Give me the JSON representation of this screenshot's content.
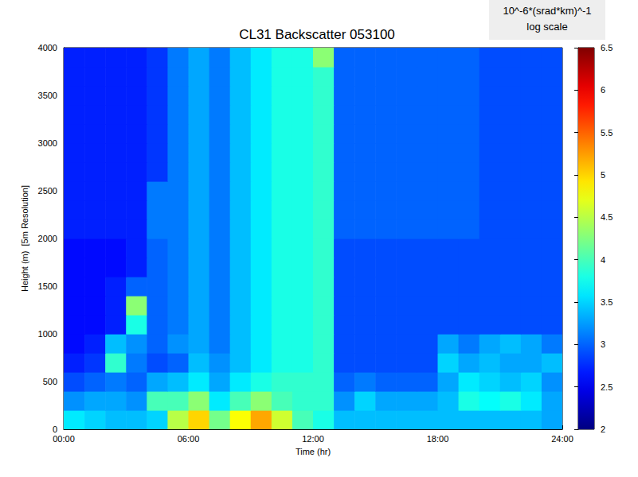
{
  "chart_data": {
    "type": "heatmap",
    "title": "CL31 Backscatter 053100",
    "x_label": "Time (hr)",
    "y_label": "Height (m)  [5m Resolution]",
    "xlim": [
      0,
      24
    ],
    "xticks": [
      {
        "value": 0,
        "label": "00:00"
      },
      {
        "value": 6,
        "label": "06:00"
      },
      {
        "value": 12,
        "label": "12:00"
      },
      {
        "value": 18,
        "label": "18:00"
      },
      {
        "value": 24,
        "label": "24:00"
      }
    ],
    "ylim": [
      0,
      4000
    ],
    "yticks": [
      0,
      500,
      1000,
      1500,
      2000,
      2500,
      3000,
      3500,
      4000
    ],
    "grid": false,
    "x": [
      0.5,
      1.5,
      2.5,
      3.5,
      4.5,
      5.5,
      6.5,
      7.5,
      8.5,
      9.5,
      10.5,
      11.5,
      12.5,
      13.5,
      14.5,
      15.5,
      16.5,
      17.5,
      18.5,
      19.5,
      20.5,
      21.5,
      22.5,
      23.5
    ],
    "y": [
      100,
      300,
      500,
      700,
      900,
      1100,
      1300,
      1500,
      1700,
      1900,
      2100,
      2300,
      2500,
      2700,
      2900,
      3100,
      3300,
      3500,
      3700,
      3900
    ],
    "cells": [
      [
        3.6,
        3.5,
        3.4,
        3.4,
        3.5,
        4.5,
        5.0,
        4.2,
        4.8,
        5.2,
        4.6,
        4.0,
        3.8,
        3.4,
        3.4,
        3.4,
        3.4,
        3.4,
        3.4,
        3.4,
        3.4,
        3.4,
        3.4,
        3.3
      ],
      [
        3.2,
        3.3,
        3.3,
        3.2,
        4.0,
        4.0,
        4.3,
        3.6,
        4.0,
        4.3,
        4.0,
        3.9,
        3.9,
        3.2,
        3.5,
        3.3,
        3.3,
        3.3,
        3.4,
        3.8,
        3.7,
        3.8,
        3.6,
        3.3
      ],
      [
        2.9,
        3.0,
        3.1,
        3.0,
        3.3,
        3.4,
        3.6,
        3.3,
        3.6,
        3.8,
        3.9,
        3.9,
        3.9,
        3.0,
        3.1,
        3.0,
        3.0,
        3.0,
        3.3,
        3.6,
        3.5,
        3.4,
        3.5,
        3.2
      ],
      [
        2.7,
        2.8,
        3.9,
        3.1,
        2.9,
        3.0,
        3.4,
        3.2,
        3.4,
        3.6,
        3.8,
        3.8,
        3.9,
        2.9,
        2.9,
        2.9,
        2.9,
        2.9,
        3.5,
        3.3,
        3.4,
        3.3,
        3.3,
        3.4
      ],
      [
        2.6,
        2.7,
        3.4,
        3.2,
        3.0,
        3.2,
        3.3,
        3.1,
        3.4,
        3.6,
        3.8,
        3.8,
        3.9,
        2.9,
        2.9,
        2.9,
        2.9,
        2.9,
        3.3,
        3.1,
        3.3,
        3.4,
        3.3,
        3.1
      ],
      [
        2.6,
        2.6,
        2.7,
        3.8,
        3.0,
        3.1,
        3.3,
        3.1,
        3.4,
        3.6,
        3.8,
        3.8,
        3.9,
        2.9,
        2.9,
        2.9,
        2.9,
        2.9,
        2.9,
        2.9,
        2.9,
        2.9,
        2.9,
        2.9
      ],
      [
        2.6,
        2.6,
        2.7,
        4.3,
        3.0,
        3.1,
        3.3,
        3.1,
        3.4,
        3.6,
        3.8,
        3.8,
        3.9,
        2.9,
        2.9,
        2.9,
        2.9,
        2.9,
        2.9,
        2.9,
        2.9,
        2.9,
        2.9,
        2.9
      ],
      [
        2.6,
        2.6,
        2.7,
        3.0,
        3.0,
        3.1,
        3.3,
        3.1,
        3.4,
        3.6,
        3.8,
        3.8,
        3.9,
        2.9,
        2.9,
        2.9,
        2.9,
        2.9,
        2.9,
        2.9,
        2.9,
        2.9,
        2.9,
        2.9
      ],
      [
        2.6,
        2.6,
        2.6,
        2.7,
        3.0,
        3.1,
        3.3,
        3.1,
        3.4,
        3.6,
        3.8,
        3.8,
        3.9,
        2.9,
        2.9,
        2.9,
        2.9,
        2.9,
        2.9,
        2.9,
        2.9,
        2.9,
        2.9,
        2.9
      ],
      [
        2.6,
        2.6,
        2.6,
        2.7,
        3.0,
        3.1,
        3.3,
        3.1,
        3.4,
        3.6,
        3.8,
        3.8,
        3.9,
        2.9,
        2.9,
        2.9,
        2.9,
        2.9,
        2.9,
        2.9,
        2.9,
        2.9,
        2.9,
        2.9
      ],
      [
        2.7,
        2.7,
        2.7,
        2.7,
        3.1,
        3.1,
        3.3,
        3.1,
        3.4,
        3.6,
        3.8,
        3.8,
        3.9,
        3.0,
        3.0,
        3.0,
        3.0,
        3.0,
        3.0,
        3.0,
        2.9,
        2.9,
        2.9,
        2.9
      ],
      [
        2.7,
        2.7,
        2.7,
        2.7,
        3.1,
        3.1,
        3.3,
        3.1,
        3.4,
        3.6,
        3.8,
        3.8,
        3.9,
        3.0,
        3.0,
        3.0,
        3.0,
        3.0,
        3.0,
        3.0,
        2.9,
        2.9,
        2.9,
        2.9
      ],
      [
        2.7,
        2.7,
        2.7,
        2.7,
        3.1,
        3.1,
        3.3,
        3.1,
        3.4,
        3.6,
        3.8,
        3.8,
        3.9,
        3.0,
        3.0,
        3.0,
        3.0,
        3.0,
        3.0,
        3.0,
        2.9,
        2.9,
        2.9,
        2.9
      ],
      [
        2.7,
        2.7,
        2.7,
        2.7,
        2.8,
        3.1,
        3.3,
        3.1,
        3.4,
        3.6,
        3.8,
        3.8,
        3.9,
        3.0,
        3.0,
        3.0,
        3.0,
        3.0,
        3.0,
        3.0,
        2.9,
        2.9,
        2.9,
        2.9
      ],
      [
        2.7,
        2.7,
        2.7,
        2.7,
        2.8,
        3.1,
        3.3,
        3.1,
        3.4,
        3.6,
        3.8,
        3.8,
        3.9,
        3.0,
        3.0,
        3.0,
        3.0,
        3.0,
        3.0,
        3.0,
        2.9,
        2.9,
        2.9,
        2.9
      ],
      [
        2.7,
        2.7,
        2.7,
        2.7,
        2.8,
        3.1,
        3.3,
        3.1,
        3.4,
        3.6,
        3.8,
        3.8,
        3.9,
        3.0,
        3.0,
        3.0,
        3.0,
        3.0,
        3.0,
        3.0,
        2.9,
        2.9,
        2.9,
        2.9
      ],
      [
        2.7,
        2.7,
        2.7,
        2.7,
        2.8,
        3.1,
        3.3,
        3.1,
        3.4,
        3.6,
        3.8,
        3.8,
        3.9,
        3.0,
        3.0,
        3.0,
        3.0,
        3.0,
        3.0,
        3.0,
        2.9,
        2.9,
        2.9,
        2.9
      ],
      [
        2.7,
        2.7,
        2.7,
        2.7,
        2.8,
        3.1,
        3.3,
        3.1,
        3.4,
        3.6,
        3.8,
        3.8,
        3.9,
        3.0,
        3.0,
        3.0,
        3.0,
        3.0,
        3.0,
        3.0,
        2.9,
        2.9,
        2.9,
        2.9
      ],
      [
        2.7,
        2.7,
        2.7,
        2.7,
        2.8,
        3.1,
        3.3,
        3.1,
        3.4,
        3.6,
        3.8,
        3.8,
        3.9,
        3.0,
        3.0,
        3.0,
        3.0,
        3.0,
        3.0,
        3.0,
        2.9,
        2.9,
        2.9,
        2.9
      ],
      [
        2.7,
        2.7,
        2.7,
        2.7,
        2.8,
        3.1,
        3.3,
        3.1,
        3.4,
        3.6,
        3.8,
        3.8,
        4.3,
        3.0,
        3.0,
        3.0,
        3.0,
        3.0,
        3.0,
        3.0,
        2.9,
        2.9,
        2.9,
        2.9
      ]
    ],
    "colorbar": {
      "label": [
        "10^-6*(srad*km)^-1",
        "log scale"
      ],
      "range": [
        2,
        6.5
      ],
      "ticks": [
        2,
        2.5,
        3,
        3.5,
        4,
        4.5,
        5,
        5.5,
        6,
        6.5
      ]
    }
  }
}
